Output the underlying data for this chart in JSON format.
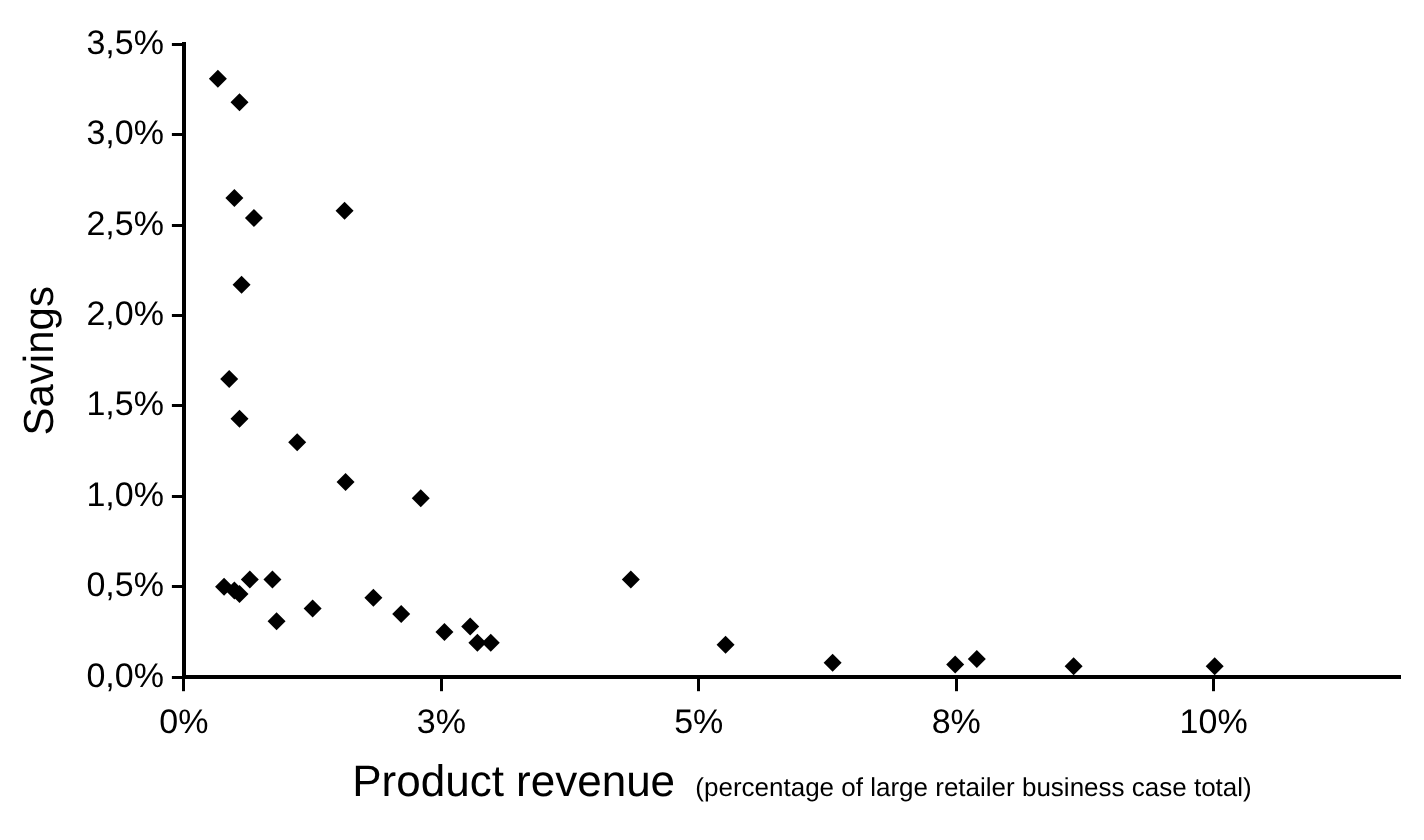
{
  "chart_data": {
    "type": "scatter",
    "xlabel": "Product revenue (percentage of large retailer business case total)",
    "ylabel": "Savings",
    "marker": "diamond",
    "grid": false,
    "legend": false,
    "xlim": [
      0,
      11.8
    ],
    "ylim": [
      0,
      3.5
    ],
    "xticks": [
      {
        "value": 0,
        "label": "0%"
      },
      {
        "value": 2.5,
        "label": "3%"
      },
      {
        "value": 5,
        "label": "5%"
      },
      {
        "value": 7.5,
        "label": "8%"
      },
      {
        "value": 10,
        "label": "10%"
      }
    ],
    "yticks": [
      {
        "value": 0,
        "label": "0,0%"
      },
      {
        "value": 0.5,
        "label": "0,5%"
      },
      {
        "value": 1,
        "label": "1,0%"
      },
      {
        "value": 1.5,
        "label": "1,5%"
      },
      {
        "value": 2,
        "label": "2,0%"
      },
      {
        "value": 2.5,
        "label": "2,5%"
      },
      {
        "value": 3,
        "label": "3,0%"
      },
      {
        "value": 3.5,
        "label": "3,5%"
      }
    ],
    "series": [
      {
        "color": "#000000",
        "x": [
          0.33,
          0.54,
          0.49,
          0.68,
          1.56,
          0.56,
          0.44,
          0.54,
          1.1,
          1.57,
          2.3,
          0.39,
          0.49,
          0.54,
          0.64,
          0.86,
          0.9,
          1.25,
          1.84,
          2.11,
          2.53,
          2.78,
          2.85,
          2.98,
          4.34,
          5.26,
          6.3,
          7.49,
          7.7,
          8.64,
          10.01
        ],
        "values": [
          3.31,
          3.18,
          2.65,
          2.54,
          2.58,
          2.17,
          1.65,
          1.43,
          1.3,
          1.08,
          0.99,
          0.5,
          0.48,
          0.46,
          0.54,
          0.54,
          0.31,
          0.38,
          0.44,
          0.35,
          0.25,
          0.28,
          0.19,
          0.19,
          0.54,
          0.18,
          0.08,
          0.07,
          0.1,
          0.06,
          0.06
        ]
      }
    ]
  }
}
